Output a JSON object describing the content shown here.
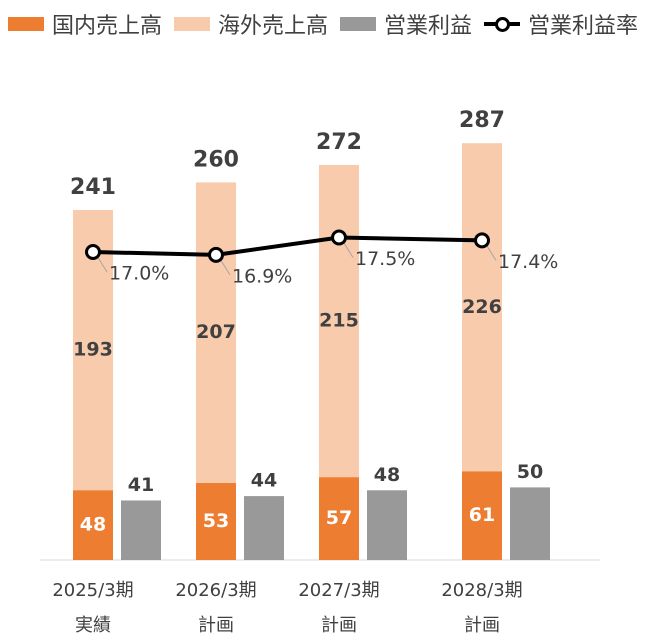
{
  "chart_data": {
    "type": "bar",
    "categories": [
      {
        "year": "2025/3期",
        "note": "実績"
      },
      {
        "year": "2026/3期",
        "note": "計画"
      },
      {
        "year": "2027/3期",
        "note": "計画"
      },
      {
        "year": "2028/3期",
        "note": "計画"
      }
    ],
    "series": [
      {
        "name": "国内売上高",
        "values": [
          48,
          53,
          57,
          61
        ],
        "color": "#ED7D31"
      },
      {
        "name": "海外売上高",
        "values": [
          193,
          207,
          215,
          226
        ],
        "color": "#F8CBAD"
      },
      {
        "name": "営業利益",
        "values": [
          41,
          44,
          48,
          50
        ],
        "color": "#999999"
      },
      {
        "name": "営業利益率",
        "values": [
          17.0,
          16.9,
          17.5,
          17.4
        ],
        "color": "#000000",
        "type": "line"
      }
    ],
    "totals": [
      241,
      260,
      272,
      287
    ],
    "margin_labels": [
      "17.0%",
      "16.9%",
      "17.5%",
      "17.4%"
    ],
    "stacked": [
      "国内売上高",
      "海外売上高"
    ],
    "legend_position": "top",
    "ylim": [
      0,
      300
    ],
    "grid": false
  }
}
